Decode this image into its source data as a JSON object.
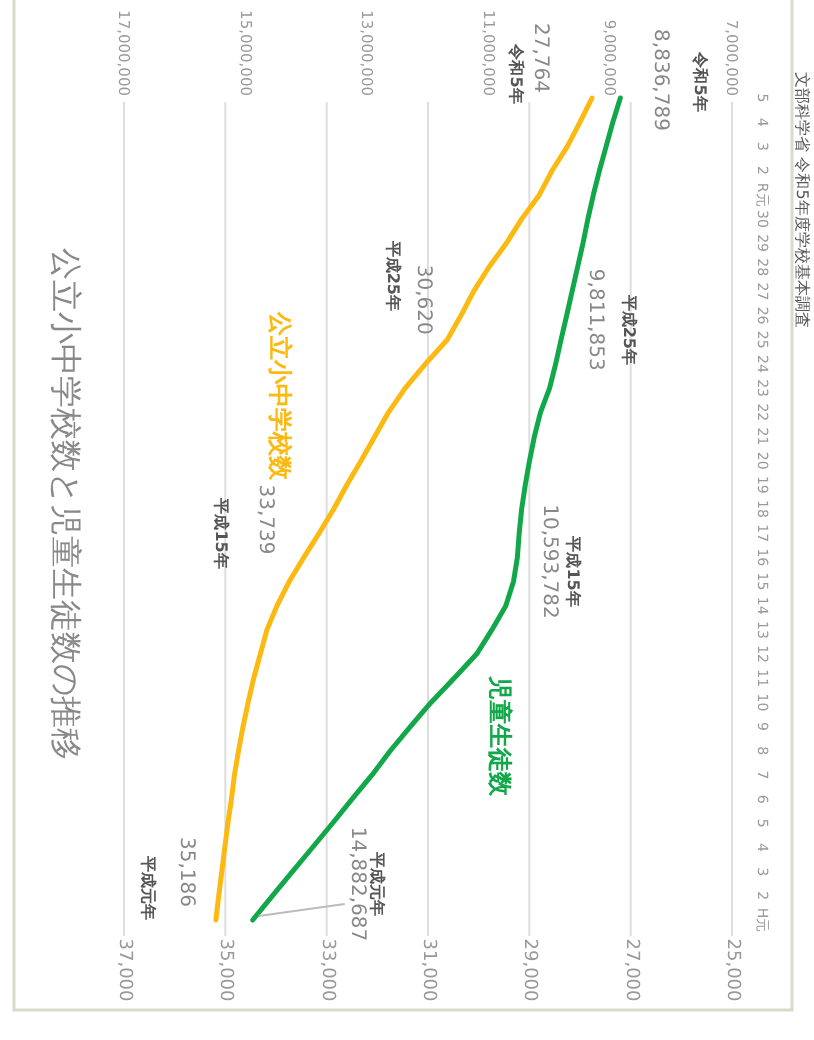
{
  "chart_data": {
    "type": "line",
    "title": "公立小中学校数と児童生徒数の推移",
    "orientation": "horizontal",
    "categories": [
      "5",
      "4",
      "3",
      "2",
      "R元",
      "30",
      "29",
      "28",
      "27",
      "26",
      "25",
      "24",
      "23",
      "22",
      "21",
      "20",
      "19",
      "18",
      "17",
      "16",
      "15",
      "14",
      "13",
      "12",
      "11",
      "10",
      "9",
      "8",
      "7",
      "6",
      "5",
      "4",
      "3",
      "2",
      "H元"
    ],
    "series": [
      {
        "name": "公立小中学校数",
        "color": "#fbb911",
        "values": [
          27764,
          28000,
          28250,
          28550,
          28800,
          29150,
          29450,
          29800,
          30100,
          30350,
          30620,
          31050,
          31450,
          31780,
          32050,
          32320,
          32600,
          32860,
          33150,
          33450,
          33739,
          33980,
          34180,
          34310,
          34440,
          34550,
          34650,
          34740,
          34820,
          34880,
          34950,
          35010,
          35070,
          35130,
          35186
        ],
        "value_labels": [
          "27,764",
          null,
          null,
          null,
          null,
          null,
          null,
          null,
          null,
          null,
          "30,620",
          null,
          null,
          null,
          null,
          null,
          null,
          null,
          null,
          null,
          "33,739",
          null,
          null,
          null,
          null,
          null,
          null,
          null,
          null,
          null,
          null,
          null,
          null,
          null,
          "35,186"
        ]
      },
      {
        "name": "児童生徒数",
        "color": "#12a84a",
        "axis": "x2",
        "values": [
          8836789,
          8960000,
          9070000,
          9180000,
          9280000,
          9370000,
          9450000,
          9540000,
          9630000,
          9720000,
          9811853,
          9900000,
          10000000,
          10150000,
          10250000,
          10330000,
          10400000,
          10460000,
          10500000,
          10530000,
          10593782,
          10720000,
          10950000,
          11200000,
          11570000,
          11950000,
          12290000,
          12620000,
          12920000,
          13250000,
          13570000,
          13900000,
          14230000,
          14560000,
          14882687
        ],
        "value_labels": [
          "8,836,789",
          null,
          null,
          null,
          null,
          null,
          null,
          null,
          null,
          null,
          "9,811,853",
          null,
          null,
          null,
          null,
          null,
          null,
          null,
          null,
          null,
          "10,593,782",
          null,
          null,
          null,
          null,
          null,
          null,
          null,
          null,
          null,
          null,
          null,
          null,
          null,
          "14,882,687"
        ]
      }
    ],
    "xlim": [
      37000,
      25000
    ],
    "xticks": [
      {
        "value": 37000,
        "label": "37,000"
      },
      {
        "value": 35000,
        "label": "35,000"
      },
      {
        "value": 33000,
        "label": "33,000"
      },
      {
        "value": 31000,
        "label": "31,000"
      },
      {
        "value": 29000,
        "label": "29,000"
      },
      {
        "value": 27000,
        "label": "27,000"
      },
      {
        "value": 25000,
        "label": "25,000"
      }
    ],
    "x2lim": [
      17000000,
      7000000
    ],
    "x2ticks": [
      {
        "value": 17000000,
        "label": "17,000,000"
      },
      {
        "value": 15000000,
        "label": "15,000,000"
      },
      {
        "value": 13000000,
        "label": "13,000,000"
      },
      {
        "value": 11000000,
        "label": "11,000,000"
      },
      {
        "value": 9000000,
        "label": "9,000,000"
      },
      {
        "value": 7000000,
        "label": "7,000,000"
      }
    ],
    "grid": "x",
    "annotations": [
      "令和5年",
      "平成25年",
      "平成15年",
      "平成元年",
      "令和5年",
      "平成25年",
      "平成15年",
      "平成元年",
      "文部科学省 令和5年度学校基本調査"
    ]
  }
}
